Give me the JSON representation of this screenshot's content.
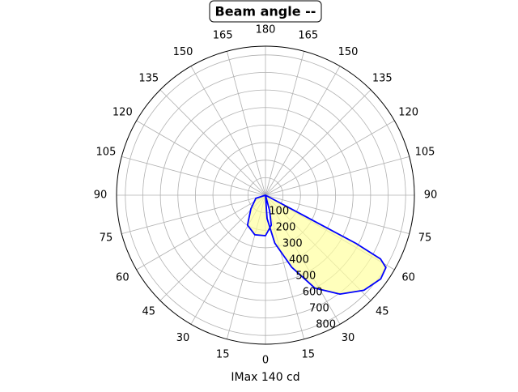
{
  "chart_data": {
    "type": "polar",
    "title": "Beam angle --",
    "xlabel": "IMax 140 cd",
    "theta_zero": "bottom",
    "thetaticks": [
      0,
      15,
      30,
      45,
      60,
      75,
      90,
      105,
      120,
      135,
      150,
      165,
      180,
      {
        "value": 195,
        "label": "165"
      },
      {
        "value": 210,
        "label": "150"
      },
      {
        "value": 225,
        "label": "135"
      },
      {
        "value": 240,
        "label": "120"
      },
      {
        "value": 255,
        "label": "105"
      },
      {
        "value": 270,
        "label": "90"
      },
      {
        "value": 285,
        "label": "75"
      },
      {
        "value": 300,
        "label": "60"
      },
      {
        "value": 315,
        "label": "45"
      },
      {
        "value": 330,
        "label": "30"
      },
      {
        "value": 345,
        "label": "15"
      }
    ],
    "rlim": [
      0,
      850
    ],
    "rticks": [
      100,
      200,
      300,
      400,
      500,
      600,
      700,
      800
    ],
    "grid": true,
    "series": [
      {
        "color": "#0000ff",
        "fill": "#ffffa0",
        "theta": [
          0,
          62,
          62,
          62,
          61,
          59,
          54,
          46,
          37,
          28,
          20,
          11,
          4,
          0,
          -72,
          -47,
          -31,
          -15,
          0,
          11,
          15,
          0
        ],
        "r": [
          0,
          89,
          378,
          585,
          751,
          802,
          813,
          781,
          706,
          600,
          437,
          278,
          134,
          0,
          58,
          114,
          199,
          234,
          231,
          174,
          91,
          0
        ]
      }
    ]
  }
}
